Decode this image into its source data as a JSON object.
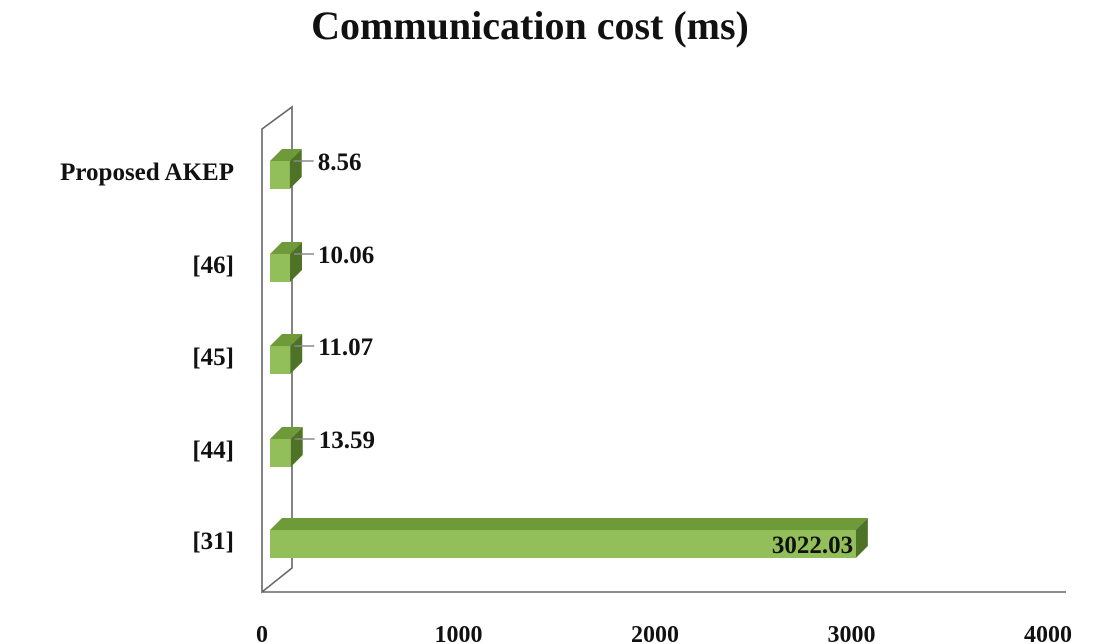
{
  "chart_data": {
    "type": "bar",
    "orientation": "horizontal",
    "title": "Communication cost (ms)",
    "categories": [
      "Proposed AKEP",
      "[46]",
      "[45]",
      "[44]",
      "[31]"
    ],
    "values": [
      8.56,
      10.06,
      11.07,
      13.59,
      3022.03
    ],
    "value_labels": [
      "8.56",
      "10.06",
      "11.07",
      "13.59",
      "3022.03"
    ],
    "x_ticks": [
      "0",
      "1000",
      "2000",
      "3000",
      "4000"
    ],
    "xlim": [
      0,
      4000
    ],
    "xlabel": "",
    "ylabel": "",
    "grid": false,
    "legend": "none",
    "style": "3d",
    "colors": {
      "bar_front": "#93bf5b",
      "bar_top": "#6f9a3a",
      "bar_side": "#4e7326",
      "wall": "#666666",
      "leader": "#8a8a8a"
    }
  }
}
